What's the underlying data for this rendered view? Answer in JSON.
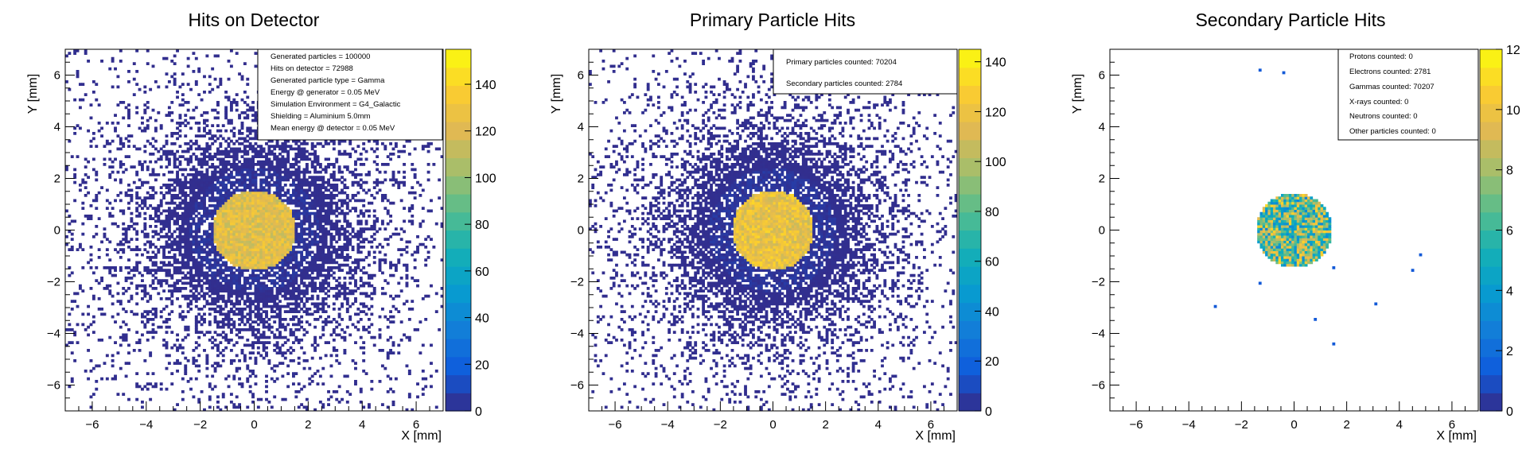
{
  "chart_data": [
    {
      "type": "heatmap",
      "title": "Hits on Detector",
      "xlabel": "X [mm]",
      "ylabel": "Y [mm]",
      "xlim": [
        -7,
        7
      ],
      "ylim": [
        -7,
        7
      ],
      "x_ticks": [
        -6,
        -4,
        -2,
        0,
        2,
        4,
        6
      ],
      "y_ticks": [
        -6,
        -4,
        -2,
        0,
        2,
        4,
        6
      ],
      "colorbar": {
        "range": [
          0,
          155
        ],
        "ticks": [
          0,
          20,
          40,
          60,
          80,
          100,
          120,
          140
        ]
      },
      "legend_position": "top-right",
      "legend": [
        "Generated particles = 100000",
        "Hits on detector = 72988",
        "Generated particle type = Gamma",
        "Energy @ generator = 0.05 MeV",
        "Simulation Environment = G4_Galactic",
        "Shielding = Aluminium 5.0mm",
        "Mean energy @ detector = 0.05 MeV"
      ],
      "distribution": {
        "core_center": [
          0,
          0
        ],
        "core_radius": 1.55,
        "core_counts": [
          110,
          135
        ],
        "halo_radius": 2.4,
        "halo_counts": [
          1,
          6
        ],
        "scatter_counts": [
          1,
          2
        ]
      }
    },
    {
      "type": "heatmap",
      "title": "Primary Particle Hits",
      "xlabel": "X [mm]",
      "ylabel": "Y [mm]",
      "xlim": [
        -7,
        7
      ],
      "ylim": [
        -7,
        7
      ],
      "x_ticks": [
        -6,
        -4,
        -2,
        0,
        2,
        4,
        6
      ],
      "y_ticks": [
        -6,
        -4,
        -2,
        0,
        2,
        4,
        6
      ],
      "colorbar": {
        "range": [
          0,
          145
        ],
        "ticks": [
          0,
          20,
          40,
          60,
          80,
          100,
          120,
          140
        ]
      },
      "legend_position": "top-right",
      "legend": [
        "Primary particles counted: 70204",
        "Secondary particles counted: 2784"
      ],
      "distribution": {
        "core_center": [
          0,
          0
        ],
        "core_radius": 1.55,
        "core_counts": [
          105,
          132
        ],
        "halo_radius": 2.4,
        "halo_counts": [
          1,
          6
        ],
        "scatter_counts": [
          1,
          2
        ]
      }
    },
    {
      "type": "heatmap",
      "title": "Secondary Particle Hits",
      "xlabel": "X [mm]",
      "ylabel": "Y [mm]",
      "xlim": [
        -7,
        7
      ],
      "ylim": [
        -7,
        7
      ],
      "x_ticks": [
        -6,
        -4,
        -2,
        0,
        2,
        4,
        6
      ],
      "y_ticks": [
        -6,
        -4,
        -2,
        0,
        2,
        4,
        6
      ],
      "colorbar": {
        "range": [
          0,
          12
        ],
        "ticks": [
          0,
          2,
          4,
          6,
          8,
          10,
          12
        ]
      },
      "legend_position": "top-right",
      "legend": [
        "Protons counted: 0",
        "Electrons counted: 2781",
        "Gammas counted: 70207",
        "X-rays counted: 0",
        "Neutrons counted: 0",
        "Other particles counted: 0"
      ],
      "distribution": {
        "core_center": [
          0,
          0
        ],
        "core_radius": 1.45,
        "core_counts": [
          3,
          11
        ]
      },
      "outlier_points": [
        [
          -1.3,
          6.2
        ],
        [
          -0.4,
          6.1
        ],
        [
          -3.0,
          -2.95
        ],
        [
          0.8,
          -3.45
        ],
        [
          1.5,
          -4.4
        ],
        [
          3.1,
          -2.85
        ],
        [
          4.5,
          -1.55
        ],
        [
          4.8,
          -0.95
        ],
        [
          1.5,
          -1.45
        ],
        [
          -1.3,
          -2.05
        ]
      ]
    }
  ]
}
